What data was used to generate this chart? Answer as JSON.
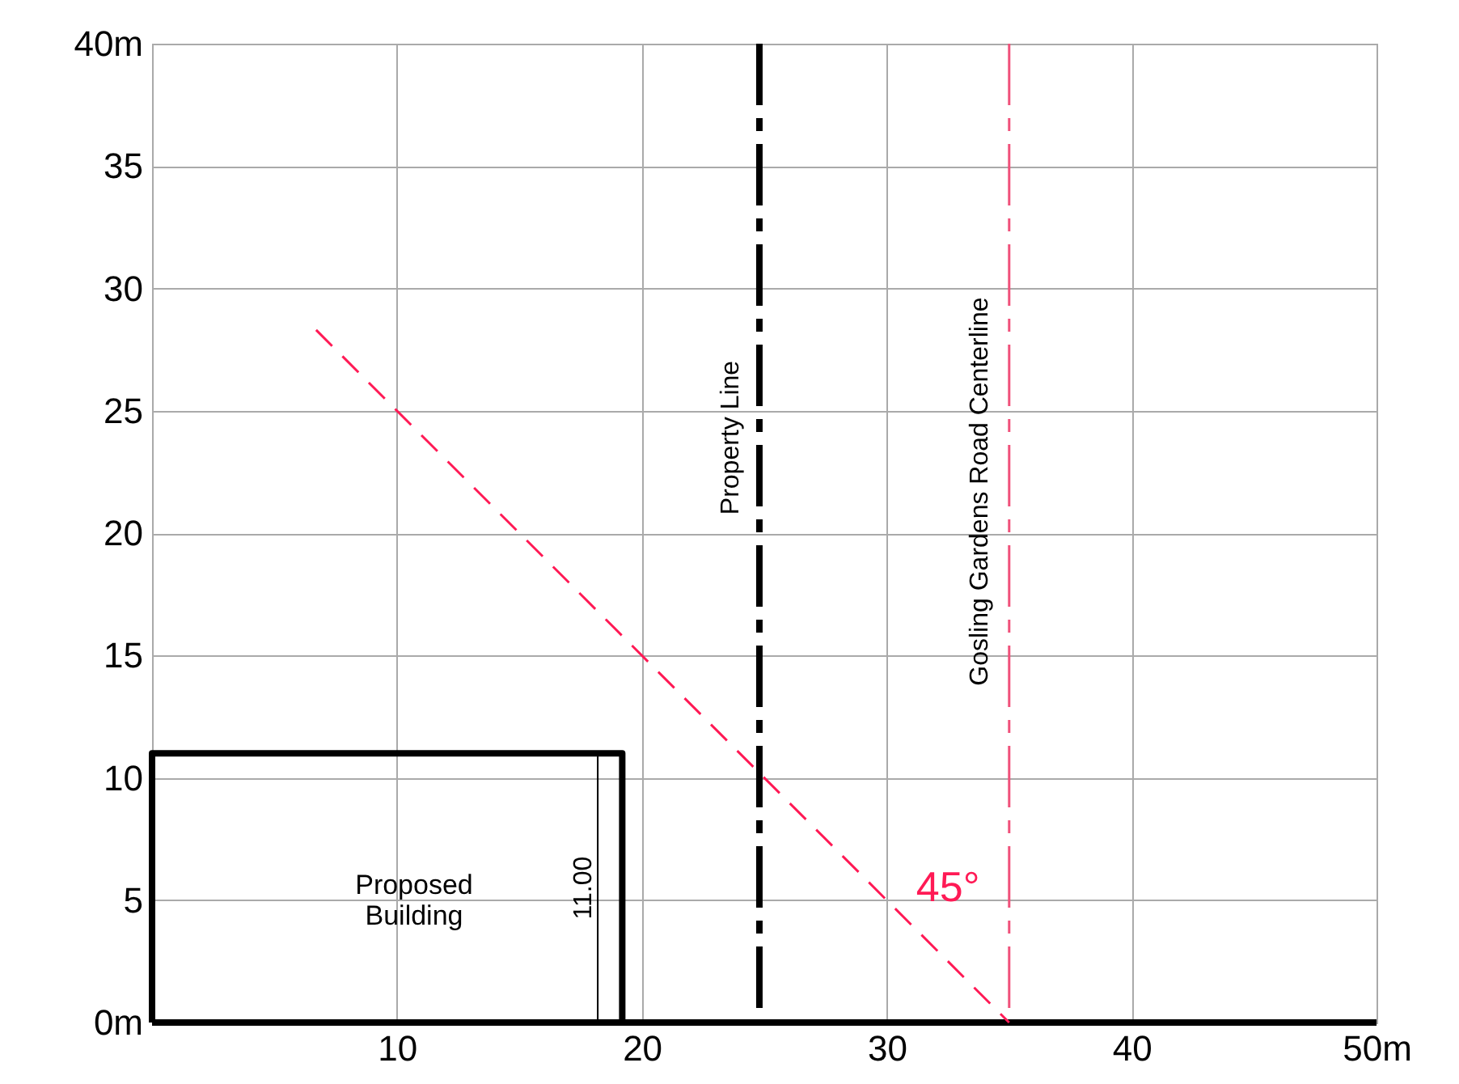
{
  "chart_data": {
    "type": "line",
    "xlim": [
      0,
      50
    ],
    "ylim": [
      0,
      40
    ],
    "xticks": [
      {
        "value": 0,
        "label": null
      },
      10,
      20,
      30,
      40,
      {
        "value": 50,
        "label": "50m"
      }
    ],
    "yticks": [
      {
        "value": 0,
        "label": "0m"
      },
      5,
      10,
      15,
      20,
      25,
      30,
      35,
      {
        "value": 40,
        "label": "40m"
      }
    ],
    "grid": true,
    "series": [
      {
        "color": "#000000",
        "line_style": "solid",
        "x": [
          0,
          0,
          19.2,
          19.2
        ],
        "values": [
          0,
          11,
          11,
          0
        ]
      },
      {
        "color": "#000000",
        "line_style": "solid",
        "x": [
          0,
          50
        ],
        "values": [
          0,
          0
        ]
      },
      {
        "color": "#000000",
        "line_style": "solid",
        "x": [
          18.2,
          18.2
        ],
        "values": [
          0,
          11
        ]
      },
      {
        "color": "#ff1a55",
        "line_style": "dashed",
        "x": [
          6.7,
          35
        ],
        "values": [
          28.3,
          0
        ]
      }
    ],
    "ref_lines": [
      {
        "axis": "x",
        "value": 24.8,
        "color": "#000000",
        "line_style": "dashed",
        "label": "Property Line"
      },
      {
        "axis": "x",
        "value": 35,
        "color": "#f0507a",
        "line_style": "dashed",
        "label": "Gosling Gardens Road Centerline"
      }
    ],
    "annotations": [
      "Proposed\nBuilding",
      "11.00",
      "45°"
    ]
  }
}
